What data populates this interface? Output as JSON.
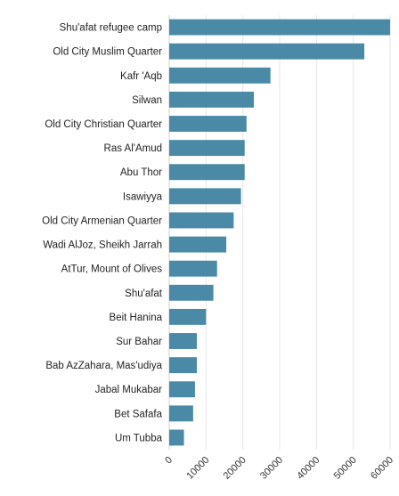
{
  "chart_data": {
    "type": "bar",
    "orientation": "horizontal",
    "title": "",
    "xlabel": "",
    "ylabel": "",
    "categories": [
      "Shu'afat refugee camp",
      "Old City  Muslim Quarter",
      "Kafr 'Aqb",
      "Silwan",
      "Old City  Christian Quarter",
      "Ras Al'Amud",
      "Abu Thor",
      "Isawiyya",
      "Old City  Armenian Quarter",
      "Wadi AlJoz, Sheikh Jarrah",
      "AtTur, Mount of Olives",
      "Shu'afat",
      "Beit Hanina",
      "Sur Bahar",
      "Bab AzZahara, Mas'udiya",
      "Jabal Mukabar",
      "Bet Safafa",
      "Um Tubba"
    ],
    "values": [
      60500,
      53000,
      27500,
      23000,
      21000,
      20500,
      20500,
      19500,
      17500,
      15500,
      13000,
      12000,
      10000,
      7500,
      7500,
      7000,
      6500,
      4000
    ],
    "xlim": [
      0,
      60000
    ],
    "xticks": [
      "0",
      "10000",
      "20000",
      "30000",
      "40000",
      "50000",
      "60000"
    ],
    "grid": true,
    "legend": "none",
    "bar_color": "#4a8aa6",
    "grid_color": "#e6e6e6"
  }
}
